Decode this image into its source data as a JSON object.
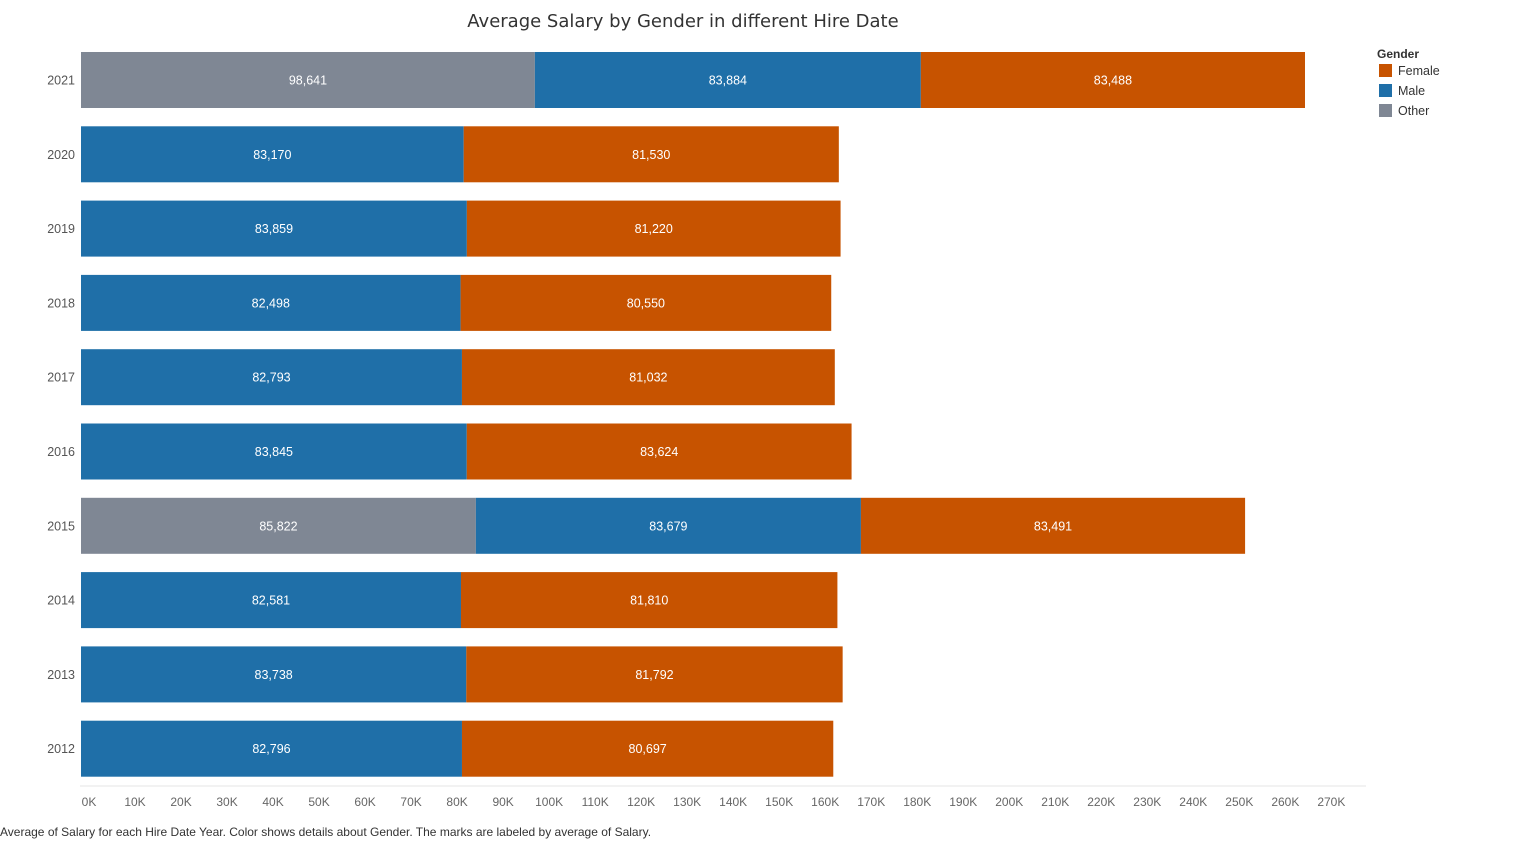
{
  "chart_data": {
    "type": "bar",
    "orientation": "horizontal",
    "stacked": true,
    "title": "Average Salary by Gender in different Hire Date",
    "xlabel": "",
    "ylabel": "",
    "xlim": [
      0,
      270000
    ],
    "x_ticks": [
      "0K",
      "10K",
      "20K",
      "30K",
      "40K",
      "50K",
      "60K",
      "70K",
      "80K",
      "90K",
      "100K",
      "110K",
      "120K",
      "130K",
      "140K",
      "150K",
      "160K",
      "170K",
      "180K",
      "190K",
      "200K",
      "210K",
      "220K",
      "230K",
      "240K",
      "250K",
      "260K",
      "270K"
    ],
    "x_tick_values": [
      0,
      10000,
      20000,
      30000,
      40000,
      50000,
      60000,
      70000,
      80000,
      90000,
      100000,
      110000,
      120000,
      130000,
      140000,
      150000,
      160000,
      170000,
      180000,
      190000,
      200000,
      210000,
      220000,
      230000,
      240000,
      250000,
      260000,
      270000
    ],
    "categories": [
      "2021",
      "2020",
      "2019",
      "2018",
      "2017",
      "2016",
      "2015",
      "2014",
      "2013",
      "2012"
    ],
    "stack_order": [
      "Other",
      "Male",
      "Female"
    ],
    "series": [
      {
        "name": "Other",
        "color": "#7f8794",
        "values": [
          98641,
          null,
          null,
          null,
          null,
          null,
          85822,
          null,
          null,
          null
        ]
      },
      {
        "name": "Male",
        "color": "#1f6fa8",
        "values": [
          83884,
          83170,
          83859,
          82498,
          82793,
          83845,
          83679,
          82581,
          83738,
          82796
        ]
      },
      {
        "name": "Female",
        "color": "#c75300",
        "values": [
          83488,
          81530,
          81220,
          80550,
          81032,
          83624,
          83491,
          81810,
          81792,
          80697
        ]
      }
    ],
    "value_labels": [
      {
        "Other": "98,641",
        "Male": "83,884",
        "Female": "83,488"
      },
      {
        "Male": "83,170",
        "Female": "81,530"
      },
      {
        "Male": "83,859",
        "Female": "81,220"
      },
      {
        "Male": "82,498",
        "Female": "80,550"
      },
      {
        "Male": "82,793",
        "Female": "81,032"
      },
      {
        "Male": "83,845",
        "Female": "83,624"
      },
      {
        "Other": "85,822",
        "Male": "83,679",
        "Female": "83,491"
      },
      {
        "Male": "82,581",
        "Female": "81,810"
      },
      {
        "Male": "83,738",
        "Female": "81,792"
      },
      {
        "Male": "82,796",
        "Female": "80,697"
      }
    ],
    "legend": {
      "title": "Gender",
      "placement": "top-right",
      "items": [
        {
          "name": "Female",
          "color": "#c75300"
        },
        {
          "name": "Male",
          "color": "#1f6fa8"
        },
        {
          "name": "Other",
          "color": "#7f8794"
        }
      ]
    },
    "grid": false
  },
  "caption": "Average of Salary for each Hire Date Year.  Color shows details about Gender.  The marks are labeled by average of Salary."
}
